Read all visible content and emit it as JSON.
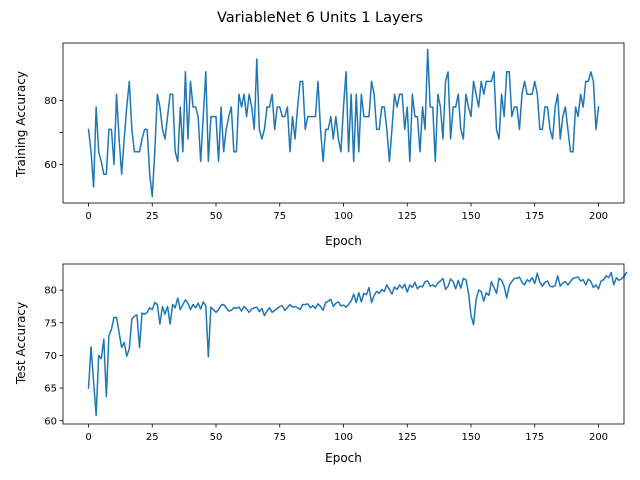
{
  "figure": {
    "suptitle": "VariableNet 6 Units 1 Layers"
  },
  "chart_data": [
    {
      "type": "line",
      "xlabel": "Epoch",
      "ylabel": "Training Accuracy",
      "xlim": [
        -10,
        210
      ],
      "ylim": [
        48,
        98
      ],
      "xticks": [
        0,
        25,
        50,
        75,
        100,
        125,
        150,
        175,
        200
      ],
      "yticks": [
        60,
        70,
        80
      ],
      "ytick_labels": [
        "60",
        "",
        "80"
      ],
      "grid": false,
      "legend": "none",
      "series": [
        {
          "color": "#1f77b4",
          "x_start": 0,
          "x_step": 1,
          "values": [
            71,
            64,
            53,
            78,
            64,
            61,
            57,
            57,
            71,
            71,
            60,
            82,
            68,
            57,
            68,
            78,
            86,
            71,
            64,
            64,
            64,
            68,
            71,
            71,
            57,
            50,
            64,
            82,
            78,
            71,
            68,
            75,
            82,
            82,
            64,
            61,
            78,
            64,
            89,
            68,
            86,
            78,
            78,
            75,
            61,
            75,
            89,
            61,
            75,
            75,
            75,
            61,
            78,
            64,
            71,
            75,
            78,
            64,
            64,
            82,
            78,
            82,
            75,
            82,
            78,
            71,
            93,
            71,
            68,
            71,
            78,
            78,
            82,
            71,
            78,
            78,
            75,
            75,
            78,
            64,
            75,
            68,
            78,
            86,
            86,
            71,
            75,
            75,
            75,
            75,
            86,
            71,
            61,
            71,
            71,
            75,
            68,
            75,
            68,
            64,
            78,
            89,
            64,
            82,
            61,
            82,
            64,
            82,
            75,
            75,
            75,
            86,
            82,
            71,
            71,
            78,
            78,
            71,
            61,
            71,
            82,
            78,
            82,
            82,
            71,
            78,
            61,
            82,
            75,
            75,
            64,
            78,
            71,
            96,
            78,
            78,
            61,
            82,
            78,
            68,
            86,
            89,
            68,
            78,
            78,
            82,
            71,
            68,
            82,
            78,
            75,
            86,
            82,
            78,
            86,
            82,
            86,
            86,
            86,
            89,
            71,
            68,
            82,
            75,
            89,
            89,
            75,
            78,
            78,
            71,
            82,
            86,
            82,
            82,
            82,
            86,
            82,
            71,
            71,
            78,
            78,
            71,
            68,
            78,
            82,
            68,
            75,
            78,
            71,
            64,
            64,
            78,
            75,
            82,
            78,
            86,
            86,
            89,
            86,
            71,
            78
          ]
        }
      ]
    },
    {
      "type": "line",
      "xlabel": "Epoch",
      "ylabel": "Test Accuracy",
      "xlim": [
        -10,
        210
      ],
      "ylim": [
        59.5,
        84
      ],
      "xticks": [
        0,
        25,
        50,
        75,
        100,
        125,
        150,
        175,
        200
      ],
      "yticks": [
        60,
        65,
        70,
        75,
        80
      ],
      "grid": false,
      "legend": "none",
      "series": [
        {
          "color": "#1f77b4",
          "x_start": 0,
          "x_step": 1,
          "values": [
            65,
            71.3,
            66,
            60.8,
            70,
            69.5,
            72.5,
            63.7,
            73,
            74,
            75.8,
            75.8,
            73.5,
            71.2,
            72,
            69.9,
            71,
            75.6,
            76,
            76.2,
            71.2,
            76.5,
            76.3,
            76.6,
            77.3,
            77,
            78.1,
            77.8,
            74.8,
            77.5,
            76.3,
            77.5,
            74.8,
            77.8,
            77.3,
            78.8,
            77,
            77.8,
            78.5,
            78,
            77,
            77.8,
            77.3,
            78,
            77.1,
            78.2,
            77.6,
            69.8,
            77.4,
            77,
            76.6,
            77,
            77.7,
            77.8,
            77.3,
            76.8,
            76.9,
            77.3,
            77.2,
            77.4,
            76.8,
            77.5,
            77.1,
            76.6,
            77.1,
            77.3,
            77.4,
            76.7,
            77.2,
            76.1,
            76.8,
            77.3,
            76.6,
            76.9,
            77.2,
            77.5,
            77.6,
            76.9,
            77.3,
            77.8,
            77.4,
            77.5,
            77.3,
            77,
            77.8,
            77.8,
            77.9,
            77.3,
            77.6,
            77.2,
            77.9,
            77.5,
            76.9,
            78.1,
            78.3,
            78.6,
            77.5,
            78,
            78.2,
            77.6,
            77.7,
            77.4,
            77.8,
            78.3,
            79.4,
            78.1,
            79.6,
            78.2,
            79.5,
            79.3,
            80.4,
            78.1,
            79.2,
            79.8,
            79.5,
            80.1,
            79.8,
            80.8,
            80.1,
            79.4,
            80.5,
            80.1,
            80.8,
            80.3,
            80.9,
            79.7,
            80.8,
            80.4,
            81.2,
            80.2,
            80.6,
            80.5,
            81.3,
            81.4,
            80.6,
            80.8,
            80.5,
            81.1,
            81.4,
            81.8,
            80.1,
            80.6,
            81.7,
            81.3,
            80.2,
            81.5,
            80.3,
            81.8,
            81.6,
            79.6,
            76.1,
            74.7,
            78.6,
            80,
            79.8,
            78.3,
            79.6,
            79.2,
            81.3,
            80.4,
            79.5,
            81.8,
            81.5,
            80.6,
            78.8,
            80.7,
            81.3,
            81.8,
            81.8,
            82,
            81.2,
            80.8,
            81.6,
            81.3,
            81.9,
            81,
            82.6,
            81.2,
            80.6,
            81.2,
            81.4,
            80.6,
            80.5,
            80.7,
            82.2,
            80.6,
            81.1,
            81.3,
            80.8,
            81.3,
            81.8,
            81.9,
            82,
            81.4,
            81.6,
            80.8,
            81.7,
            81.3,
            80.4,
            80.8,
            80.2,
            81.4,
            81.6,
            82.2,
            81.9,
            82.7,
            80.8,
            81.9,
            81.5,
            81.7,
            82.1,
            82.7
          ]
        }
      ]
    }
  ]
}
